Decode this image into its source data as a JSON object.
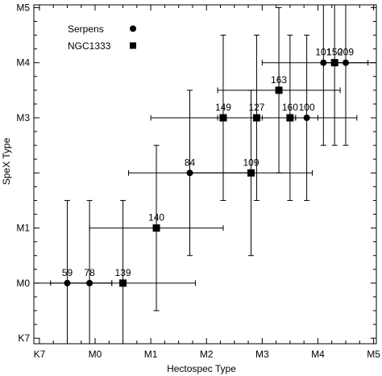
{
  "chart_data": {
    "type": "scatter",
    "xlabel": "Hectospec Type",
    "ylabel": "SpeX Type",
    "x_tick_labels": [
      {
        "value": -1,
        "label": "K7"
      },
      {
        "value": 0,
        "label": "M0"
      },
      {
        "value": 1,
        "label": "M1"
      },
      {
        "value": 2,
        "label": "M2"
      },
      {
        "value": 3,
        "label": "M3"
      },
      {
        "value": 4,
        "label": "M4"
      },
      {
        "value": 5,
        "label": "M5"
      }
    ],
    "y_tick_labels": [
      {
        "value": -1,
        "label": "K7"
      },
      {
        "value": 0,
        "label": "M0"
      },
      {
        "value": 1,
        "label": "M1"
      },
      {
        "value": 3,
        "label": "M3"
      },
      {
        "value": 4,
        "label": "M4"
      },
      {
        "value": 5,
        "label": "M5"
      }
    ],
    "xlim": [
      -1.1,
      5.05
    ],
    "ylim": [
      -1.1,
      5.05
    ],
    "grid": false,
    "legend_position": "top-left",
    "series": [
      {
        "name": "Serpens",
        "marker": "circle",
        "points": [
          {
            "label": "59",
            "x": -0.5,
            "y": 0.0,
            "xerr": [
              0.8,
              0.8
            ],
            "yerr": [
              1.1,
              1.5
            ]
          },
          {
            "label": "78",
            "x": -0.1,
            "y": 0.0,
            "xerr": [
              0.4,
              0.4
            ],
            "yerr": [
              1.1,
              1.5
            ]
          },
          {
            "label": "84",
            "x": 1.7,
            "y": 2.0,
            "xerr": [
              1.1,
              1.1
            ],
            "yerr": [
              1.5,
              1.5
            ]
          },
          {
            "label": "100",
            "x": 3.8,
            "y": 3.0,
            "xerr": [
              0.9,
              0.9
            ],
            "yerr": [
              1.5,
              1.5
            ]
          },
          {
            "label": "101",
            "x": 4.1,
            "y": 4.0,
            "xerr": [
              1.1,
              1.1
            ],
            "yerr": [
              1.5,
              1.5
            ]
          },
          {
            "label": "209",
            "x": 4.5,
            "y": 4.0,
            "xerr": [
              0.4,
              0.4
            ],
            "yerr": [
              1.5,
              1.5
            ]
          }
        ]
      },
      {
        "name": "NGC1333",
        "marker": "square",
        "points": [
          {
            "label": "139",
            "x": 0.5,
            "y": 0.0,
            "xerr": [
              1.3,
              1.3
            ],
            "yerr": [
              1.1,
              1.5
            ]
          },
          {
            "label": "140",
            "x": 1.1,
            "y": 1.0,
            "xerr": [
              1.2,
              1.2
            ],
            "yerr": [
              1.5,
              1.5
            ]
          },
          {
            "label": "149",
            "x": 2.3,
            "y": 3.0,
            "xerr": [
              1.3,
              1.3
            ],
            "yerr": [
              1.5,
              1.5
            ]
          },
          {
            "label": "127",
            "x": 2.9,
            "y": 3.0,
            "xerr": [
              0.7,
              0.7
            ],
            "yerr": [
              1.5,
              1.5
            ]
          },
          {
            "label": "160",
            "x": 3.5,
            "y": 3.0,
            "xerr": [
              0.5,
              0.5
            ],
            "yerr": [
              1.5,
              1.5
            ]
          },
          {
            "label": "109",
            "x": 2.8,
            "y": 2.0,
            "xerr": [
              1.1,
              1.1
            ],
            "yerr": [
              1.5,
              1.5
            ]
          },
          {
            "label": "163",
            "x": 3.3,
            "y": 3.5,
            "xerr": [
              1.1,
              1.1
            ],
            "yerr": [
              1.5,
              1.5
            ]
          },
          {
            "label": "150",
            "x": 4.3,
            "y": 4.0,
            "xerr": [
              0.2,
              0.2
            ],
            "yerr": [
              1.5,
              1.5
            ]
          }
        ]
      }
    ]
  }
}
